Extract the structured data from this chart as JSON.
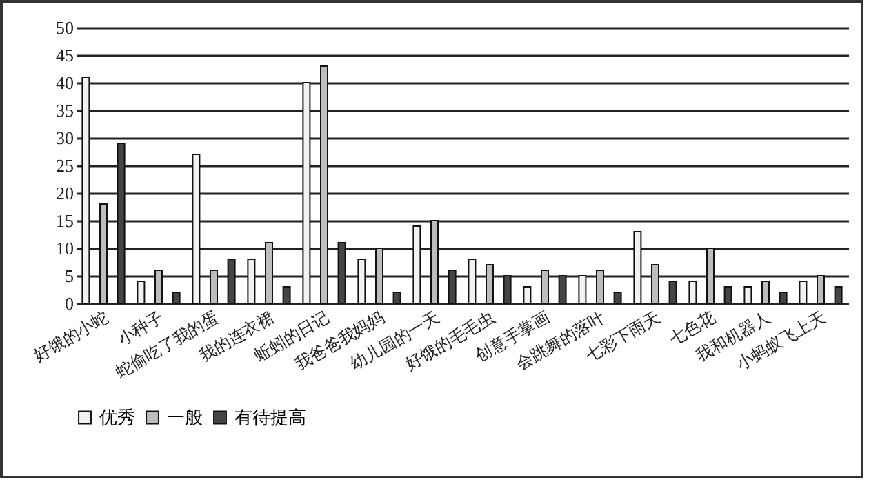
{
  "chart_data": {
    "type": "bar",
    "categories": [
      "好饿的小蛇",
      "小种子",
      "蛇偷吃了我的蛋",
      "我的连衣裙",
      "蚯蚓的日记",
      "我爸爸我妈妈",
      "幼儿园的一天",
      "好饿的毛毛虫",
      "创意手掌画",
      "会跳舞的落叶",
      "七彩下雨天",
      "七色花",
      "我和机器人",
      "小蚂蚁飞上天"
    ],
    "series": [
      {
        "name": "优秀",
        "color": "#f2f2f2",
        "values": [
          41,
          4,
          27,
          8,
          40,
          8,
          14,
          8,
          3,
          5,
          13,
          4,
          3,
          4
        ]
      },
      {
        "name": "一般",
        "color": "#bdbdbd",
        "values": [
          18,
          6,
          6,
          11,
          43,
          10,
          15,
          7,
          6,
          6,
          7,
          10,
          4,
          5
        ]
      },
      {
        "name": "有待提高",
        "color": "#454545",
        "values": [
          29,
          2,
          8,
          3,
          11,
          2,
          6,
          5,
          5,
          2,
          4,
          3,
          2,
          3
        ]
      }
    ],
    "ylim": [
      0,
      50
    ],
    "yticks": [
      0,
      5,
      10,
      15,
      20,
      25,
      30,
      35,
      40,
      45,
      50
    ],
    "grid": "y",
    "legend": "bottom"
  }
}
